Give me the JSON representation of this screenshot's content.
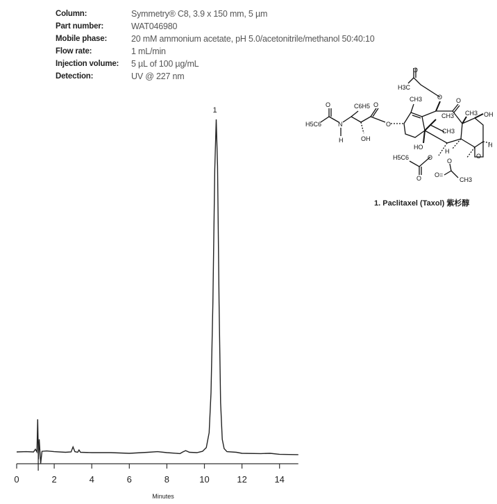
{
  "conditions": [
    {
      "label": "Column:",
      "value": "Symmetry® C8, 3.9 x 150 mm, 5 µm"
    },
    {
      "label": "Part number:",
      "value": "WAT046980"
    },
    {
      "label": "Mobile phase:",
      "value": "20 mM ammonium acetate, pH 5.0/acetonitrile/methanol 50:40:10"
    },
    {
      "label": "Flow rate:",
      "value": "1 mL/min"
    },
    {
      "label": "Injection volume:",
      "value": "5 µL of 100 µg/mL"
    },
    {
      "label": "Detection:",
      "value": "UV @ 227 nm"
    }
  ],
  "structure": {
    "caption": "1. Paclitaxel (Taxol) 紫杉醇",
    "atoms": [
      "O",
      "H3C",
      "O",
      "CH3",
      "O",
      "CH3",
      "CH3",
      "OH",
      "O",
      "H5C6",
      "N",
      "H",
      "C6H5",
      "O",
      "OH",
      "O",
      "CH3",
      "HO",
      "H",
      "H",
      "O",
      "H5C6",
      "O",
      "O",
      "O",
      "O=",
      "CH3"
    ]
  },
  "chart_data": {
    "type": "line",
    "title": "",
    "xlabel": "Minutes",
    "ylabel": "",
    "xlim": [
      0,
      15
    ],
    "xticks": [
      0,
      2,
      4,
      6,
      8,
      10,
      12,
      14
    ],
    "ylim": [
      -5,
      105
    ],
    "grid": false,
    "peaks": [
      {
        "label": "1",
        "time": 10.63,
        "name": "Paclitaxel (Taxol)"
      }
    ],
    "injection_marker_time": 1.15,
    "series": [
      {
        "color": "#222222",
        "points": [
          [
            0,
            0.2
          ],
          [
            0.5,
            0.3
          ],
          [
            0.9,
            0.2
          ],
          [
            1.0,
            1.0
          ],
          [
            1.08,
            0.2
          ],
          [
            1.12,
            10.0
          ],
          [
            1.16,
            -2.0
          ],
          [
            1.2,
            4.0
          ],
          [
            1.28,
            -3.2
          ],
          [
            1.35,
            0.4
          ],
          [
            1.6,
            0.5
          ],
          [
            2.0,
            0.3
          ],
          [
            2.6,
            0.1
          ],
          [
            2.9,
            0.2
          ],
          [
            3.0,
            1.7
          ],
          [
            3.1,
            0.3
          ],
          [
            3.25,
            0.1
          ],
          [
            3.32,
            0.8
          ],
          [
            3.4,
            0.1
          ],
          [
            4,
            0
          ],
          [
            5,
            0
          ],
          [
            6,
            -0.2
          ],
          [
            7,
            0.1
          ],
          [
            7.5,
            0.3
          ],
          [
            8.0,
            0
          ],
          [
            8.7,
            -0.3
          ],
          [
            8.85,
            0.2
          ],
          [
            9.0,
            0.6
          ],
          [
            9.2,
            0.1
          ],
          [
            9.6,
            0
          ],
          [
            9.9,
            0.4
          ],
          [
            10.1,
            1.5
          ],
          [
            10.25,
            6
          ],
          [
            10.35,
            18
          ],
          [
            10.45,
            45
          ],
          [
            10.55,
            85
          ],
          [
            10.63,
            100
          ],
          [
            10.7,
            86
          ],
          [
            10.78,
            45
          ],
          [
            10.86,
            15
          ],
          [
            10.95,
            4
          ],
          [
            11.05,
            1.2
          ],
          [
            11.2,
            0.3
          ],
          [
            11.7,
            0.1
          ],
          [
            12,
            -0.2
          ],
          [
            13,
            -0.3
          ],
          [
            13.5,
            -0.2
          ],
          [
            14,
            -0.5
          ],
          [
            15,
            -0.6
          ]
        ]
      }
    ]
  }
}
